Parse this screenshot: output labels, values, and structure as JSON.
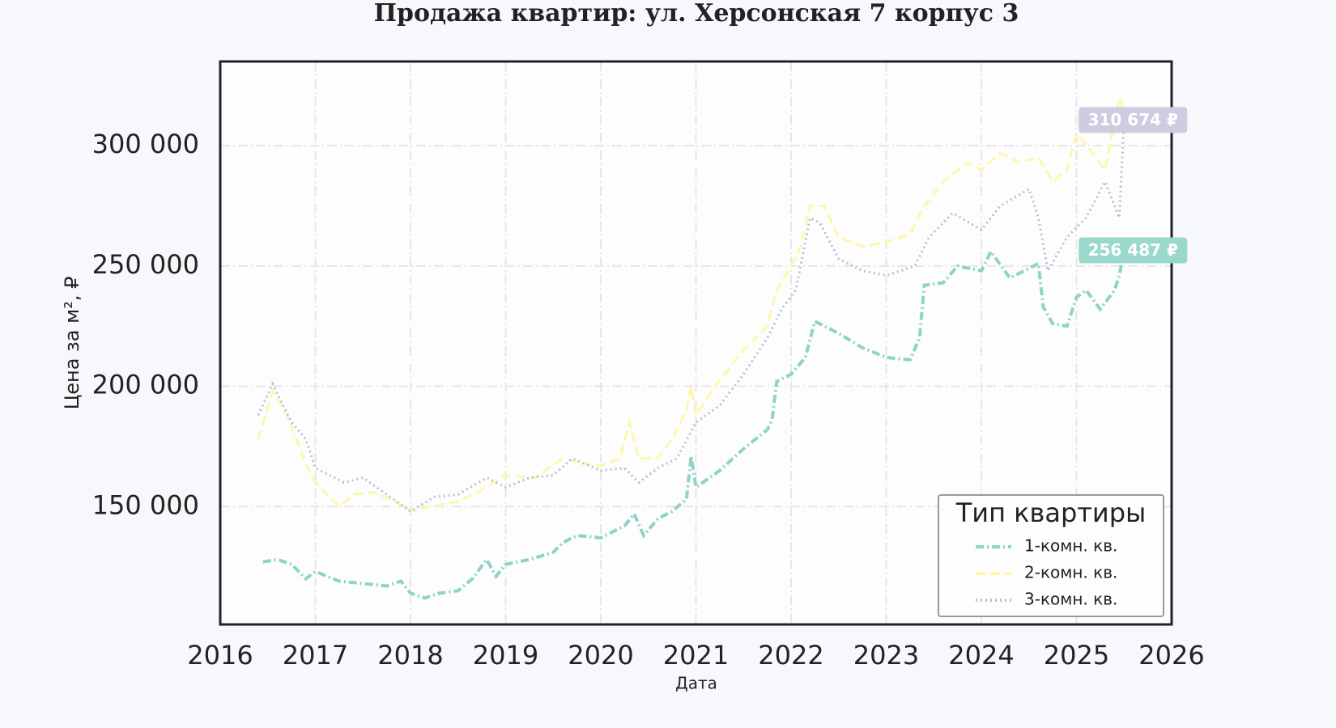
{
  "chart_data": {
    "type": "line",
    "title": "Продажа квартир: ул. Херсонская 7 корпус 3",
    "xlabel": "Дата",
    "ylabel": "Цена за м², ₽",
    "xlim": [
      2016,
      2026
    ],
    "xticks": [
      2016,
      2017,
      2018,
      2019,
      2020,
      2021,
      2022,
      2023,
      2024,
      2025,
      2026
    ],
    "ylim": [
      101000,
      335000
    ],
    "yticks": [
      {
        "value": 150000,
        "label": "150 000"
      },
      {
        "value": 200000,
        "label": "200 000"
      },
      {
        "value": 250000,
        "label": "250 000"
      },
      {
        "value": 300000,
        "label": "300 000"
      }
    ],
    "grid": true,
    "legend_title": "Тип квартиры",
    "legend_loc": "lower right",
    "series": [
      {
        "name": "1-комн. кв.",
        "color": "#8dd3c7",
        "style": "dashdot",
        "x": [
          2016.45,
          2016.6,
          2016.75,
          2016.9,
          2017.0,
          2017.25,
          2017.5,
          2017.75,
          2017.9,
          2018.0,
          2018.15,
          2018.3,
          2018.5,
          2018.65,
          2018.8,
          2018.9,
          2019.0,
          2019.25,
          2019.5,
          2019.6,
          2019.75,
          2020.0,
          2020.25,
          2020.35,
          2020.45,
          2020.6,
          2020.75,
          2020.9,
          2020.95,
          2021.0,
          2021.25,
          2021.5,
          2021.75,
          2021.8,
          2021.85,
          2022.0,
          2022.15,
          2022.25,
          2022.5,
          2022.75,
          2023.0,
          2023.25,
          2023.35,
          2023.4,
          2023.6,
          2023.75,
          2024.0,
          2024.1,
          2024.3,
          2024.5,
          2024.6,
          2024.65,
          2024.75,
          2024.9,
          2025.0,
          2025.1,
          2025.25,
          2025.4,
          2025.45,
          2025.5
        ],
        "values": [
          127000,
          128000,
          126000,
          120000,
          123000,
          119000,
          118000,
          117000,
          119000,
          114000,
          112000,
          114000,
          115000,
          120000,
          128000,
          121000,
          126000,
          128000,
          131000,
          135000,
          138000,
          137000,
          142000,
          147000,
          138000,
          145000,
          148000,
          153000,
          171000,
          158000,
          165000,
          174000,
          182000,
          186000,
          202000,
          205000,
          212000,
          227000,
          222000,
          216000,
          212000,
          211000,
          220000,
          242000,
          243000,
          250000,
          248000,
          256000,
          245000,
          249000,
          251000,
          233000,
          226000,
          225000,
          237000,
          240000,
          232000,
          240000,
          246000,
          256487
        ]
      },
      {
        "name": "2-комн. кв.",
        "color": "#fff7a8",
        "style": "dashed",
        "x": [
          2016.4,
          2016.55,
          2016.7,
          2016.9,
          2017.0,
          2017.25,
          2017.4,
          2017.6,
          2017.8,
          2018.0,
          2018.2,
          2018.5,
          2018.75,
          2019.0,
          2019.3,
          2019.6,
          2019.8,
          2020.0,
          2020.2,
          2020.3,
          2020.4,
          2020.6,
          2020.75,
          2020.9,
          2020.95,
          2021.0,
          2021.2,
          2021.5,
          2021.75,
          2021.85,
          2022.0,
          2022.1,
          2022.2,
          2022.35,
          2022.5,
          2022.75,
          2023.0,
          2023.25,
          2023.4,
          2023.6,
          2023.85,
          2024.0,
          2024.2,
          2024.4,
          2024.6,
          2024.75,
          2024.9,
          2025.0,
          2025.15,
          2025.3,
          2025.45,
          2025.5
        ],
        "values": [
          178000,
          198000,
          188000,
          168000,
          160000,
          150000,
          155000,
          156000,
          153000,
          148000,
          150000,
          152000,
          157000,
          163000,
          162000,
          170000,
          168000,
          167000,
          170000,
          185000,
          170000,
          170000,
          178000,
          190000,
          200000,
          188000,
          200000,
          215000,
          225000,
          240000,
          250000,
          258000,
          275000,
          275000,
          262000,
          258000,
          260000,
          263000,
          275000,
          285000,
          293000,
          290000,
          297000,
          293000,
          295000,
          285000,
          290000,
          305000,
          298000,
          290000,
          320000,
          315000
        ]
      },
      {
        "name": "3-комн. кв.",
        "color": "#bebada",
        "style": "dotted",
        "x": [
          2016.4,
          2016.55,
          2016.75,
          2016.9,
          2017.0,
          2017.3,
          2017.5,
          2017.75,
          2018.0,
          2018.25,
          2018.5,
          2018.8,
          2019.0,
          2019.25,
          2019.5,
          2019.7,
          2020.0,
          2020.25,
          2020.4,
          2020.6,
          2020.8,
          2021.0,
          2021.25,
          2021.5,
          2021.75,
          2021.9,
          2022.05,
          2022.2,
          2022.3,
          2022.5,
          2022.75,
          2023.0,
          2023.3,
          2023.45,
          2023.7,
          2024.0,
          2024.2,
          2024.5,
          2024.6,
          2024.7,
          2024.9,
          2025.1,
          2025.3,
          2025.45,
          2025.5
        ],
        "values": [
          188000,
          201000,
          185000,
          178000,
          166000,
          160000,
          162000,
          155000,
          148000,
          154000,
          155000,
          162000,
          158000,
          162000,
          163000,
          170000,
          165000,
          166000,
          160000,
          166000,
          170000,
          185000,
          192000,
          205000,
          220000,
          232000,
          240000,
          270000,
          268000,
          253000,
          248000,
          246000,
          250000,
          262000,
          272000,
          265000,
          275000,
          282000,
          270000,
          248000,
          262000,
          270000,
          285000,
          270000,
          310674
        ]
      }
    ],
    "annotations": [
      {
        "x": 2025.5,
        "value": 310674,
        "label": "310 674 ₽",
        "color": "#cfcbe0"
      },
      {
        "x": 2025.5,
        "value": 256487,
        "label": "256 487 ₽",
        "color": "#9bd8cc"
      }
    ]
  }
}
